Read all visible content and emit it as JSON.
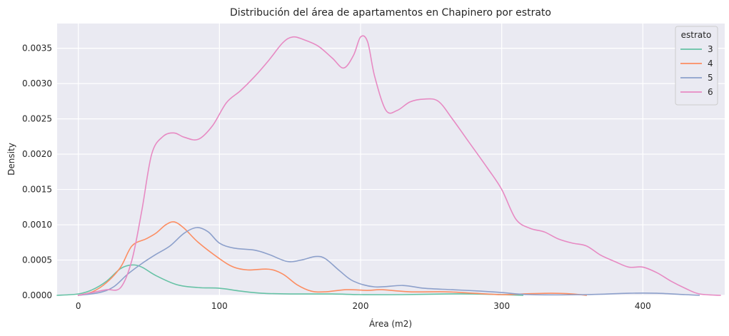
{
  "chart_data": {
    "type": "line",
    "title": "Distribución del área de apartamentos en Chapinero por estrato",
    "xlabel": "Área (m2)",
    "ylabel": "Density",
    "xlim": [
      -15,
      458
    ],
    "ylim": [
      0,
      0.00385
    ],
    "grid": true,
    "background": "#eaeaf2",
    "x_ticks": [
      {
        "value": 0,
        "label": "0"
      },
      {
        "value": 100,
        "label": "100"
      },
      {
        "value": 200,
        "label": "200"
      },
      {
        "value": 300,
        "label": "300"
      },
      {
        "value": 400,
        "label": "400"
      }
    ],
    "y_ticks": [
      {
        "value": 0.0,
        "label": "0.0000"
      },
      {
        "value": 0.0005,
        "label": "0.0005"
      },
      {
        "value": 0.001,
        "label": "0.0010"
      },
      {
        "value": 0.0015,
        "label": "0.0015"
      },
      {
        "value": 0.002,
        "label": "0.0020"
      },
      {
        "value": 0.0025,
        "label": "0.0025"
      },
      {
        "value": 0.003,
        "label": "0.0030"
      },
      {
        "value": 0.0035,
        "label": "0.0035"
      }
    ],
    "legend": {
      "title": "estrato",
      "position": "top-right"
    },
    "series": [
      {
        "name": "3",
        "color": "#66c2a5",
        "points": [
          [
            -15,
            0
          ],
          [
            0,
            2e-05
          ],
          [
            10,
            8e-05
          ],
          [
            20,
            0.0002
          ],
          [
            30,
            0.00038
          ],
          [
            38,
            0.00043
          ],
          [
            45,
            0.0004
          ],
          [
            55,
            0.00028
          ],
          [
            70,
            0.00015
          ],
          [
            85,
            0.00011
          ],
          [
            100,
            0.0001
          ],
          [
            115,
            6e-05
          ],
          [
            130,
            3e-05
          ],
          [
            150,
            2e-05
          ],
          [
            180,
            2e-05
          ],
          [
            200,
            1e-05
          ],
          [
            230,
            1e-05
          ],
          [
            260,
            2e-05
          ],
          [
            280,
            2e-05
          ],
          [
            300,
            1e-05
          ],
          [
            315,
            0
          ]
        ]
      },
      {
        "name": "4",
        "color": "#fc8d62",
        "points": [
          [
            0,
            0
          ],
          [
            10,
            5e-05
          ],
          [
            20,
            0.00018
          ],
          [
            30,
            0.0004
          ],
          [
            38,
            0.0007
          ],
          [
            48,
            0.0008
          ],
          [
            55,
            0.00088
          ],
          [
            62,
            0.001
          ],
          [
            68,
            0.00104
          ],
          [
            75,
            0.00095
          ],
          [
            85,
            0.00075
          ],
          [
            100,
            0.00052
          ],
          [
            110,
            0.0004
          ],
          [
            120,
            0.00036
          ],
          [
            135,
            0.00037
          ],
          [
            145,
            0.0003
          ],
          [
            155,
            0.00015
          ],
          [
            165,
            6e-05
          ],
          [
            175,
            5e-05
          ],
          [
            190,
            8e-05
          ],
          [
            205,
            7e-05
          ],
          [
            215,
            8e-05
          ],
          [
            235,
            5e-05
          ],
          [
            260,
            5e-05
          ],
          [
            280,
            3e-05
          ],
          [
            300,
            1e-05
          ],
          [
            315,
            2e-05
          ],
          [
            335,
            3e-05
          ],
          [
            350,
            2e-05
          ],
          [
            360,
            0
          ]
        ]
      },
      {
        "name": "5",
        "color": "#8da0cb",
        "points": [
          [
            0,
            0
          ],
          [
            15,
            4e-05
          ],
          [
            25,
            0.00012
          ],
          [
            35,
            0.0003
          ],
          [
            45,
            0.00045
          ],
          [
            55,
            0.00058
          ],
          [
            65,
            0.0007
          ],
          [
            75,
            0.00088
          ],
          [
            84,
            0.00096
          ],
          [
            92,
            0.0009
          ],
          [
            100,
            0.00074
          ],
          [
            110,
            0.00067
          ],
          [
            125,
            0.00064
          ],
          [
            135,
            0.00058
          ],
          [
            148,
            0.00048
          ],
          [
            158,
            0.0005
          ],
          [
            168,
            0.00055
          ],
          [
            175,
            0.00052
          ],
          [
            185,
            0.00035
          ],
          [
            195,
            0.0002
          ],
          [
            210,
            0.00012
          ],
          [
            230,
            0.00014
          ],
          [
            245,
            0.0001
          ],
          [
            265,
            8e-05
          ],
          [
            285,
            6e-05
          ],
          [
            300,
            4e-05
          ],
          [
            320,
            1e-05
          ],
          [
            360,
            1e-05
          ],
          [
            390,
            3e-05
          ],
          [
            410,
            3e-05
          ],
          [
            430,
            1e-05
          ],
          [
            440,
            0
          ]
        ]
      },
      {
        "name": "6",
        "color": "#e78ac3",
        "points": [
          [
            0,
            0
          ],
          [
            10,
            4e-05
          ],
          [
            20,
            8e-05
          ],
          [
            30,
            0.00011
          ],
          [
            38,
            0.0005
          ],
          [
            45,
            0.0012
          ],
          [
            52,
            0.002
          ],
          [
            60,
            0.00225
          ],
          [
            68,
            0.0023
          ],
          [
            75,
            0.00224
          ],
          [
            85,
            0.00221
          ],
          [
            95,
            0.0024
          ],
          [
            105,
            0.00273
          ],
          [
            115,
            0.0029
          ],
          [
            125,
            0.0031
          ],
          [
            135,
            0.00333
          ],
          [
            145,
            0.00358
          ],
          [
            152,
            0.00366
          ],
          [
            160,
            0.00362
          ],
          [
            170,
            0.00353
          ],
          [
            180,
            0.00336
          ],
          [
            188,
            0.00322
          ],
          [
            195,
            0.0034
          ],
          [
            200,
            0.00366
          ],
          [
            205,
            0.00359
          ],
          [
            210,
            0.0031
          ],
          [
            218,
            0.00262
          ],
          [
            226,
            0.00262
          ],
          [
            235,
            0.00274
          ],
          [
            245,
            0.00278
          ],
          [
            255,
            0.00275
          ],
          [
            265,
            0.0025
          ],
          [
            275,
            0.00222
          ],
          [
            290,
            0.0018
          ],
          [
            300,
            0.0015
          ],
          [
            310,
            0.00108
          ],
          [
            320,
            0.00095
          ],
          [
            330,
            0.0009
          ],
          [
            340,
            0.0008
          ],
          [
            350,
            0.00074
          ],
          [
            360,
            0.0007
          ],
          [
            370,
            0.00057
          ],
          [
            380,
            0.00048
          ],
          [
            390,
            0.0004
          ],
          [
            400,
            0.0004
          ],
          [
            410,
            0.00032
          ],
          [
            420,
            0.0002
          ],
          [
            430,
            0.0001
          ],
          [
            440,
            2e-05
          ],
          [
            455,
            0
          ]
        ]
      }
    ]
  }
}
